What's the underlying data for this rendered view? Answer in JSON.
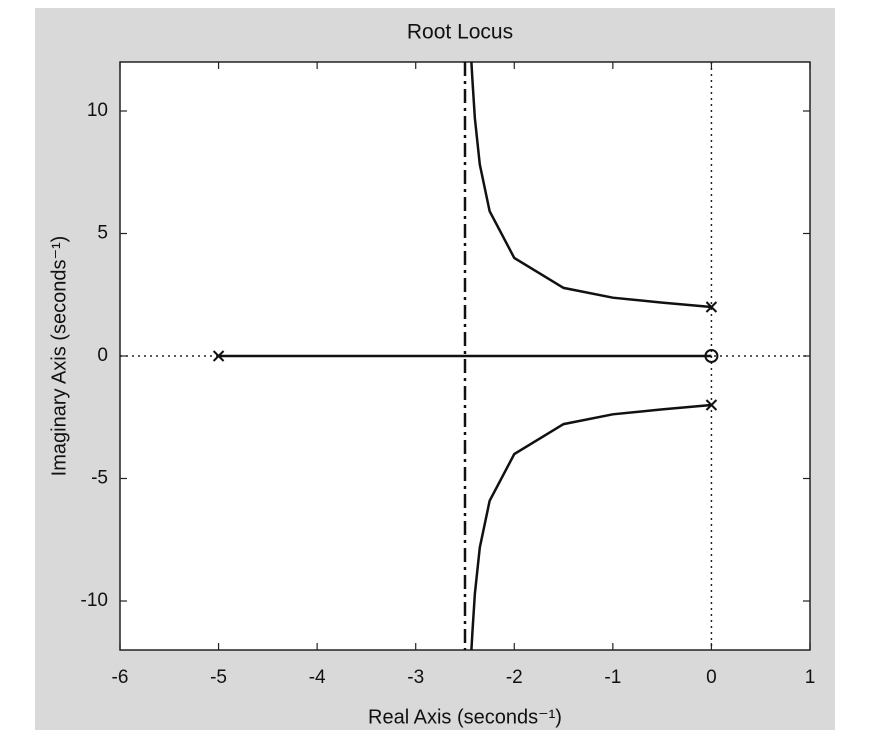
{
  "chart_data": {
    "type": "line",
    "title": "Root Locus",
    "xlabel": "Real Axis (seconds⁻¹)",
    "ylabel": "Imaginary Axis (seconds⁻¹)",
    "xlim": [
      -6,
      1
    ],
    "ylim": [
      -12,
      12
    ],
    "xticks": [
      -6,
      -5,
      -4,
      -3,
      -2,
      -1,
      0,
      1
    ],
    "yticks": [
      -10,
      -5,
      0,
      5,
      10
    ],
    "series": [
      {
        "color": "#111111",
        "style": "solid",
        "x": [
          0,
          -0.5,
          -1,
          -1.5,
          -2,
          -2.25,
          -2.35,
          -2.4,
          -2.425,
          -2.435
        ],
        "values": [
          2,
          2.18,
          2.38,
          2.78,
          4,
          5.91,
          7.82,
          9.71,
          11.29,
          12
        ]
      },
      {
        "color": "#111111",
        "style": "solid",
        "x": [
          0,
          -0.5,
          -1,
          -1.5,
          -2,
          -2.25,
          -2.35,
          -2.4,
          -2.425,
          -2.435
        ],
        "values": [
          -2,
          -2.18,
          -2.38,
          -2.78,
          -4,
          -5.91,
          -7.82,
          -9.71,
          -11.29,
          -12
        ]
      },
      {
        "color": "#111111",
        "style": "solid",
        "x": [
          -5,
          0
        ],
        "values": [
          0,
          0
        ]
      },
      {
        "color": "#111111",
        "style": "dashdot",
        "x": [
          -2.5,
          -2.5
        ],
        "values": [
          12,
          -12
        ]
      }
    ],
    "poles": {
      "x": [
        -5,
        0,
        0
      ],
      "y": [
        0,
        2,
        -2
      ]
    },
    "zeros": {
      "x": [
        0
      ],
      "y": [
        0
      ]
    }
  }
}
